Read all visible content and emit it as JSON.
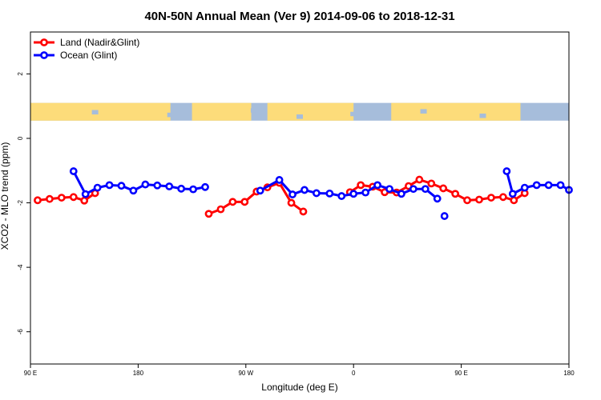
{
  "chart_data": {
    "type": "line",
    "title": "40N-50N Annual Mean (Ver 9)   2014-09-06 to 2018-12-31",
    "xlabel": "Longitude (deg E)",
    "ylabel": "XCO2 - MLO trend (ppm)",
    "xlim": [
      90,
      540
    ],
    "ylim": [
      -7.0,
      3.3
    ],
    "x_ticks": [
      {
        "value": 90,
        "label": "90 E"
      },
      {
        "value": 180,
        "label": "180"
      },
      {
        "value": 270,
        "label": "90 W"
      },
      {
        "value": 360,
        "label": "0"
      },
      {
        "value": 450,
        "label": "90 E"
      },
      {
        "value": 540,
        "label": "180"
      }
    ],
    "y_ticks": [
      {
        "value": 2,
        "label": "2"
      },
      {
        "value": 0,
        "label": "0"
      },
      {
        "value": -2,
        "label": "-2"
      },
      {
        "value": -4,
        "label": "-4"
      },
      {
        "value": -6,
        "label": "-6"
      }
    ],
    "map_strip": {
      "y_top": 1.1,
      "y_bottom": 0.55,
      "ocean_color": "#a6bddb",
      "land_color": "#fddc7a"
    },
    "legend_position": "top-left",
    "series": [
      {
        "name": "Land (Nadir&Glint)",
        "color": "#ff0000",
        "segments": [
          [
            [
              96,
              -1.92
            ],
            [
              106,
              -1.88
            ],
            [
              116,
              -1.84
            ],
            [
              126,
              -1.82
            ],
            [
              135,
              -1.93
            ],
            [
              144,
              -1.7
            ]
          ],
          [
            [
              239,
              -2.34
            ],
            [
              249,
              -2.2
            ],
            [
              259,
              -1.97
            ],
            [
              269,
              -1.97
            ],
            [
              279,
              -1.65
            ],
            [
              288,
              -1.52
            ],
            [
              298,
              -1.38
            ],
            [
              308,
              -2.0
            ],
            [
              318,
              -2.27
            ]
          ],
          [
            [
              357,
              -1.67
            ],
            [
              366,
              -1.45
            ],
            [
              376,
              -1.5
            ],
            [
              386,
              -1.67
            ],
            [
              396,
              -1.68
            ],
            [
              406,
              -1.48
            ],
            [
              415,
              -1.28
            ],
            [
              425,
              -1.4
            ],
            [
              435,
              -1.55
            ],
            [
              445,
              -1.72
            ],
            [
              455,
              -1.92
            ],
            [
              465,
              -1.9
            ],
            [
              475,
              -1.84
            ],
            [
              485,
              -1.82
            ],
            [
              494,
              -1.92
            ],
            [
              503,
              -1.7
            ]
          ]
        ]
      },
      {
        "name": "Ocean (Glint)",
        "color": "#0000ff",
        "segments": [
          [
            [
              126,
              -1.02
            ],
            [
              136,
              -1.73
            ],
            [
              146,
              -1.53
            ],
            [
              156,
              -1.45
            ],
            [
              166,
              -1.47
            ],
            [
              176,
              -1.62
            ],
            [
              186,
              -1.43
            ],
            [
              196,
              -1.46
            ],
            [
              206,
              -1.49
            ],
            [
              216,
              -1.56
            ],
            [
              226,
              -1.58
            ],
            [
              236,
              -1.51
            ]
          ],
          [
            [
              282,
              -1.62
            ],
            [
              298,
              -1.29
            ],
            [
              309,
              -1.74
            ],
            [
              319,
              -1.6
            ],
            [
              329,
              -1.7
            ],
            [
              340,
              -1.71
            ],
            [
              350,
              -1.79
            ],
            [
              360,
              -1.72
            ],
            [
              370,
              -1.68
            ],
            [
              380,
              -1.45
            ],
            [
              390,
              -1.57
            ],
            [
              400,
              -1.72
            ],
            [
              410,
              -1.57
            ],
            [
              420,
              -1.57
            ],
            [
              430,
              -1.87
            ]
          ],
          [
            [
              436,
              -2.41
            ]
          ],
          [
            [
              488,
              -1.02
            ],
            [
              493,
              -1.72
            ],
            [
              503,
              -1.53
            ],
            [
              513,
              -1.45
            ],
            [
              523,
              -1.45
            ],
            [
              533,
              -1.45
            ],
            [
              540,
              -1.6
            ]
          ]
        ]
      }
    ]
  }
}
